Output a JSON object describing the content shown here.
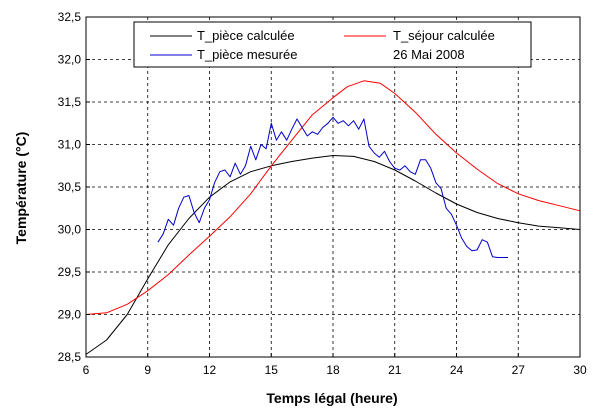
{
  "chart_data": {
    "type": "line",
    "xlabel": "Temps légal (heure)",
    "ylabel": "Température (°C)",
    "xlim": [
      6,
      30
    ],
    "ylim": [
      28.5,
      32.5
    ],
    "x_ticks": [
      "6",
      "9",
      "12",
      "15",
      "18",
      "21",
      "24",
      "27",
      "30"
    ],
    "y_ticks": [
      "28,5",
      "29,0",
      "29,5",
      "30,0",
      "30,5",
      "31,0",
      "31,5",
      "32,0",
      "32,5"
    ],
    "grid": true,
    "legend_position": "top",
    "annotation": "26 Mai 2008",
    "series": [
      {
        "name": "T_pièce calculée",
        "color": "#000000",
        "x": [
          6,
          7,
          8,
          9,
          10,
          11,
          12,
          13,
          14,
          15,
          16,
          17,
          18,
          19,
          20,
          21,
          22,
          23,
          24,
          25,
          26,
          27,
          28,
          29,
          30
        ],
        "y": [
          28.53,
          28.7,
          29.0,
          29.42,
          29.82,
          30.13,
          30.38,
          30.56,
          30.68,
          30.75,
          30.8,
          30.84,
          30.87,
          30.86,
          30.8,
          30.7,
          30.57,
          30.43,
          30.3,
          30.2,
          30.13,
          30.08,
          30.04,
          30.02,
          30.0
        ]
      },
      {
        "name": "T_séjour calculée",
        "color": "#ff0000",
        "x": [
          6,
          7,
          8,
          9,
          10,
          11,
          12,
          13,
          14,
          15,
          16,
          17,
          18,
          18.7,
          19.5,
          20.3,
          21,
          22,
          23,
          24,
          25,
          26,
          27,
          28,
          29,
          30
        ],
        "y": [
          29.0,
          29.02,
          29.12,
          29.28,
          29.47,
          29.7,
          29.92,
          30.15,
          30.42,
          30.75,
          31.05,
          31.35,
          31.55,
          31.68,
          31.75,
          31.72,
          31.6,
          31.38,
          31.12,
          30.9,
          30.71,
          30.54,
          30.42,
          30.34,
          30.28,
          30.22
        ]
      },
      {
        "name": "T_pièce mesurée",
        "color": "#0000cc",
        "x": [
          9.5,
          9.75,
          10.0,
          10.25,
          10.5,
          10.75,
          11.0,
          11.25,
          11.5,
          11.75,
          12.0,
          12.25,
          12.5,
          12.75,
          13.0,
          13.25,
          13.5,
          13.75,
          14.0,
          14.25,
          14.5,
          14.75,
          15.0,
          15.25,
          15.5,
          15.75,
          16.0,
          16.25,
          16.5,
          16.75,
          17.0,
          17.25,
          17.5,
          17.75,
          18.0,
          18.25,
          18.5,
          18.75,
          19.0,
          19.25,
          19.5,
          19.75,
          20.0,
          20.25,
          20.5,
          20.75,
          21.0,
          21.25,
          21.5,
          21.75,
          22.0,
          22.25,
          22.5,
          22.75,
          23.0,
          23.25,
          23.5,
          23.75,
          24.0,
          24.25,
          24.5,
          24.75,
          25.0,
          25.25,
          25.5,
          25.75,
          26.0,
          26.25,
          26.5
        ],
        "y": [
          29.85,
          29.95,
          30.12,
          30.05,
          30.25,
          30.38,
          30.4,
          30.2,
          30.08,
          30.25,
          30.35,
          30.55,
          30.68,
          30.7,
          30.62,
          30.78,
          30.65,
          30.75,
          30.98,
          30.82,
          31.0,
          30.95,
          31.25,
          31.05,
          31.15,
          31.05,
          31.18,
          31.3,
          31.2,
          31.1,
          31.15,
          31.12,
          31.2,
          31.25,
          31.32,
          31.25,
          31.28,
          31.22,
          31.28,
          31.18,
          31.3,
          30.98,
          30.9,
          30.85,
          30.92,
          30.8,
          30.72,
          30.7,
          30.75,
          30.68,
          30.65,
          30.82,
          30.82,
          30.72,
          30.55,
          30.48,
          30.25,
          30.18,
          30.05,
          29.9,
          29.8,
          29.75,
          29.76,
          29.88,
          29.85,
          29.68,
          29.67,
          29.67,
          29.67
        ]
      }
    ]
  }
}
